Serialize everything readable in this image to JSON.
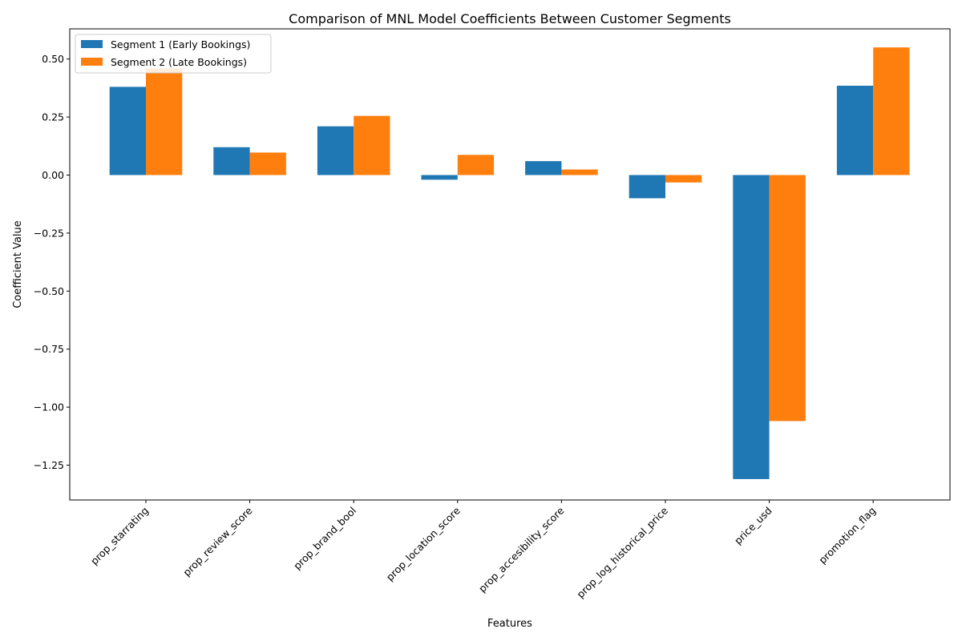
{
  "chart_data": {
    "type": "bar",
    "title": "Comparison of MNL Model Coefficients Between Customer Segments",
    "xlabel": "Features",
    "ylabel": "Coefficient Value",
    "categories": [
      "prop_starrating",
      "prop_review_score",
      "prop_brand_bool",
      "prop_location_score",
      "prop_accesibility_score",
      "prop_log_historical_price",
      "price_usd",
      "promotion_flag"
    ],
    "series": [
      {
        "name": "Segment 1 (Early Bookings)",
        "color": "#1f77b4",
        "values": [
          0.38,
          0.12,
          0.21,
          -0.02,
          0.06,
          -0.1,
          -1.31,
          0.385
        ]
      },
      {
        "name": "Segment 2 (Late Bookings)",
        "color": "#ff7f0e",
        "values": [
          0.46,
          0.097,
          0.255,
          0.087,
          0.024,
          -0.032,
          -1.06,
          0.55
        ]
      }
    ],
    "ylim": [
      -1.4,
      0.63
    ],
    "yticks": [
      0.5,
      0.25,
      0.0,
      -0.25,
      -0.5,
      -0.75,
      -1.0,
      -1.25
    ],
    "ytick_labels": [
      "0.50",
      "0.25",
      "0.00",
      "−0.25",
      "−0.50",
      "−0.75",
      "−1.00",
      "−1.25"
    ],
    "grid": false,
    "legend_position": "top-left"
  }
}
